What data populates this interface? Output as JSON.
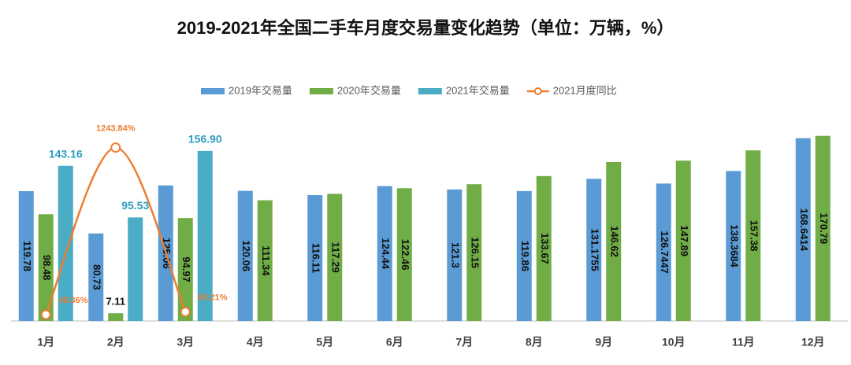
{
  "chart_data": {
    "type": "bar",
    "title": "2019-2021年全国二手车月度交易量变化趋势（单位：万辆，%）",
    "categories": [
      "1月",
      "2月",
      "3月",
      "4月",
      "5月",
      "6月",
      "7月",
      "8月",
      "9月",
      "10月",
      "11月",
      "12月"
    ],
    "series": [
      {
        "name": "2019年交易量",
        "color": "#5b9bd5",
        "values": [
          119.78,
          80.73,
          125.06,
          120.06,
          116.11,
          124.44,
          121.3,
          119.86,
          131.1755,
          126.7447,
          138.3684,
          168.6414
        ]
      },
      {
        "name": "2020年交易量",
        "color": "#70ad47",
        "values": [
          98.48,
          7.11,
          94.97,
          111.34,
          117.29,
          122.46,
          126.15,
          133.67,
          146.62,
          147.89,
          157.38,
          170.79
        ]
      },
      {
        "name": "2021年交易量",
        "color": "#4bacc6",
        "values": [
          143.16,
          95.53,
          156.9,
          null,
          null,
          null,
          null,
          null,
          null,
          null,
          null,
          null
        ],
        "value_labels": [
          "143.16",
          "95.53",
          "156.90",
          null,
          null,
          null,
          null,
          null,
          null,
          null,
          null,
          null
        ]
      },
      {
        "name": "2021月度同比",
        "color": "#ed7d31",
        "type": "line",
        "axis": "y2",
        "values": [
          45.36,
          1243.84,
          65.21,
          null,
          null,
          null,
          null,
          null,
          null,
          null,
          null,
          null
        ],
        "value_labels": [
          "45.36%",
          "1243.84%",
          "65.21%",
          null,
          null,
          null,
          null,
          null,
          null,
          null,
          null,
          null
        ]
      }
    ],
    "ylim": [
      0,
      180
    ],
    "y2lim": [
      0,
      1400
    ],
    "legend": "top"
  }
}
